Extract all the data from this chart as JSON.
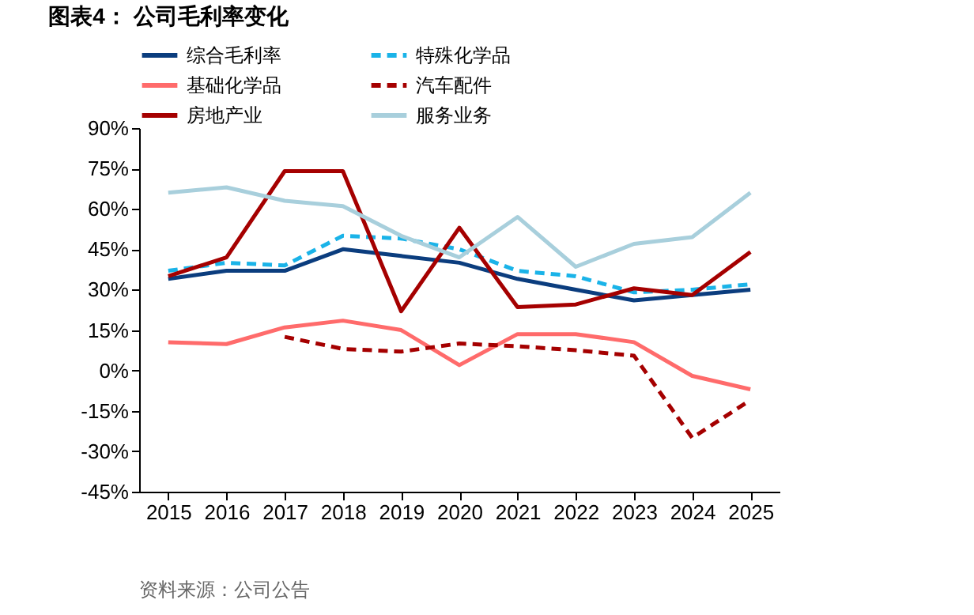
{
  "chart_data": {
    "type": "line",
    "title": "图表4：  公司毛利率变化",
    "categories": [
      "2015",
      "2016",
      "2017",
      "2018",
      "2019",
      "2020",
      "2021",
      "2022",
      "2023",
      "2024",
      "2025"
    ],
    "series": [
      {
        "name": "综合毛利率",
        "color": "#0b3d7e",
        "line_style": "solid",
        "values": [
          34,
          37,
          37,
          45,
          42.5,
          40,
          34,
          30,
          26,
          28,
          30
        ]
      },
      {
        "name": "特殊化学品",
        "color": "#1ab3e8",
        "line_style": "dashed",
        "values": [
          37,
          40,
          39,
          50,
          49,
          45,
          37,
          35,
          29,
          30,
          32
        ]
      },
      {
        "name": "基础化学品",
        "color": "#ff6b6b",
        "line_style": "solid",
        "values": [
          10.5,
          9.8,
          16,
          18.5,
          15,
          2,
          13.5,
          13.5,
          10.5,
          -2,
          -7
        ]
      },
      {
        "name": "汽车配件",
        "color": "#a50000",
        "line_style": "dashed",
        "values": [
          null,
          null,
          12.5,
          8,
          7,
          10,
          9,
          7.5,
          5.5,
          -25,
          -11
        ]
      },
      {
        "name": "房地产业",
        "color": "#a50000",
        "line_style": "solid",
        "values": [
          35,
          42,
          74,
          74,
          22,
          53,
          23.5,
          24.5,
          30.5,
          28,
          44
        ]
      },
      {
        "name": "服务业务",
        "color": "#a8cfdc",
        "line_style": "solid",
        "values": [
          66,
          68,
          63,
          61,
          50,
          42,
          57,
          38.5,
          47,
          49.5,
          66
        ]
      }
    ],
    "ylim": [
      -45,
      90
    ],
    "yticks": [
      {
        "value": -45,
        "label": "-45%"
      },
      {
        "value": -30,
        "label": "-30%"
      },
      {
        "value": -15,
        "label": "-15%"
      },
      {
        "value": 0,
        "label": "0%"
      },
      {
        "value": 15,
        "label": "15%"
      },
      {
        "value": 30,
        "label": "30%"
      },
      {
        "value": 45,
        "label": "45%"
      },
      {
        "value": 60,
        "label": "60%"
      },
      {
        "value": 75,
        "label": "75%"
      },
      {
        "value": 90,
        "label": "90%"
      }
    ],
    "grid": false,
    "legend": "top",
    "marker": "none",
    "annotations": [
      "资料来源：公司公告"
    ]
  }
}
